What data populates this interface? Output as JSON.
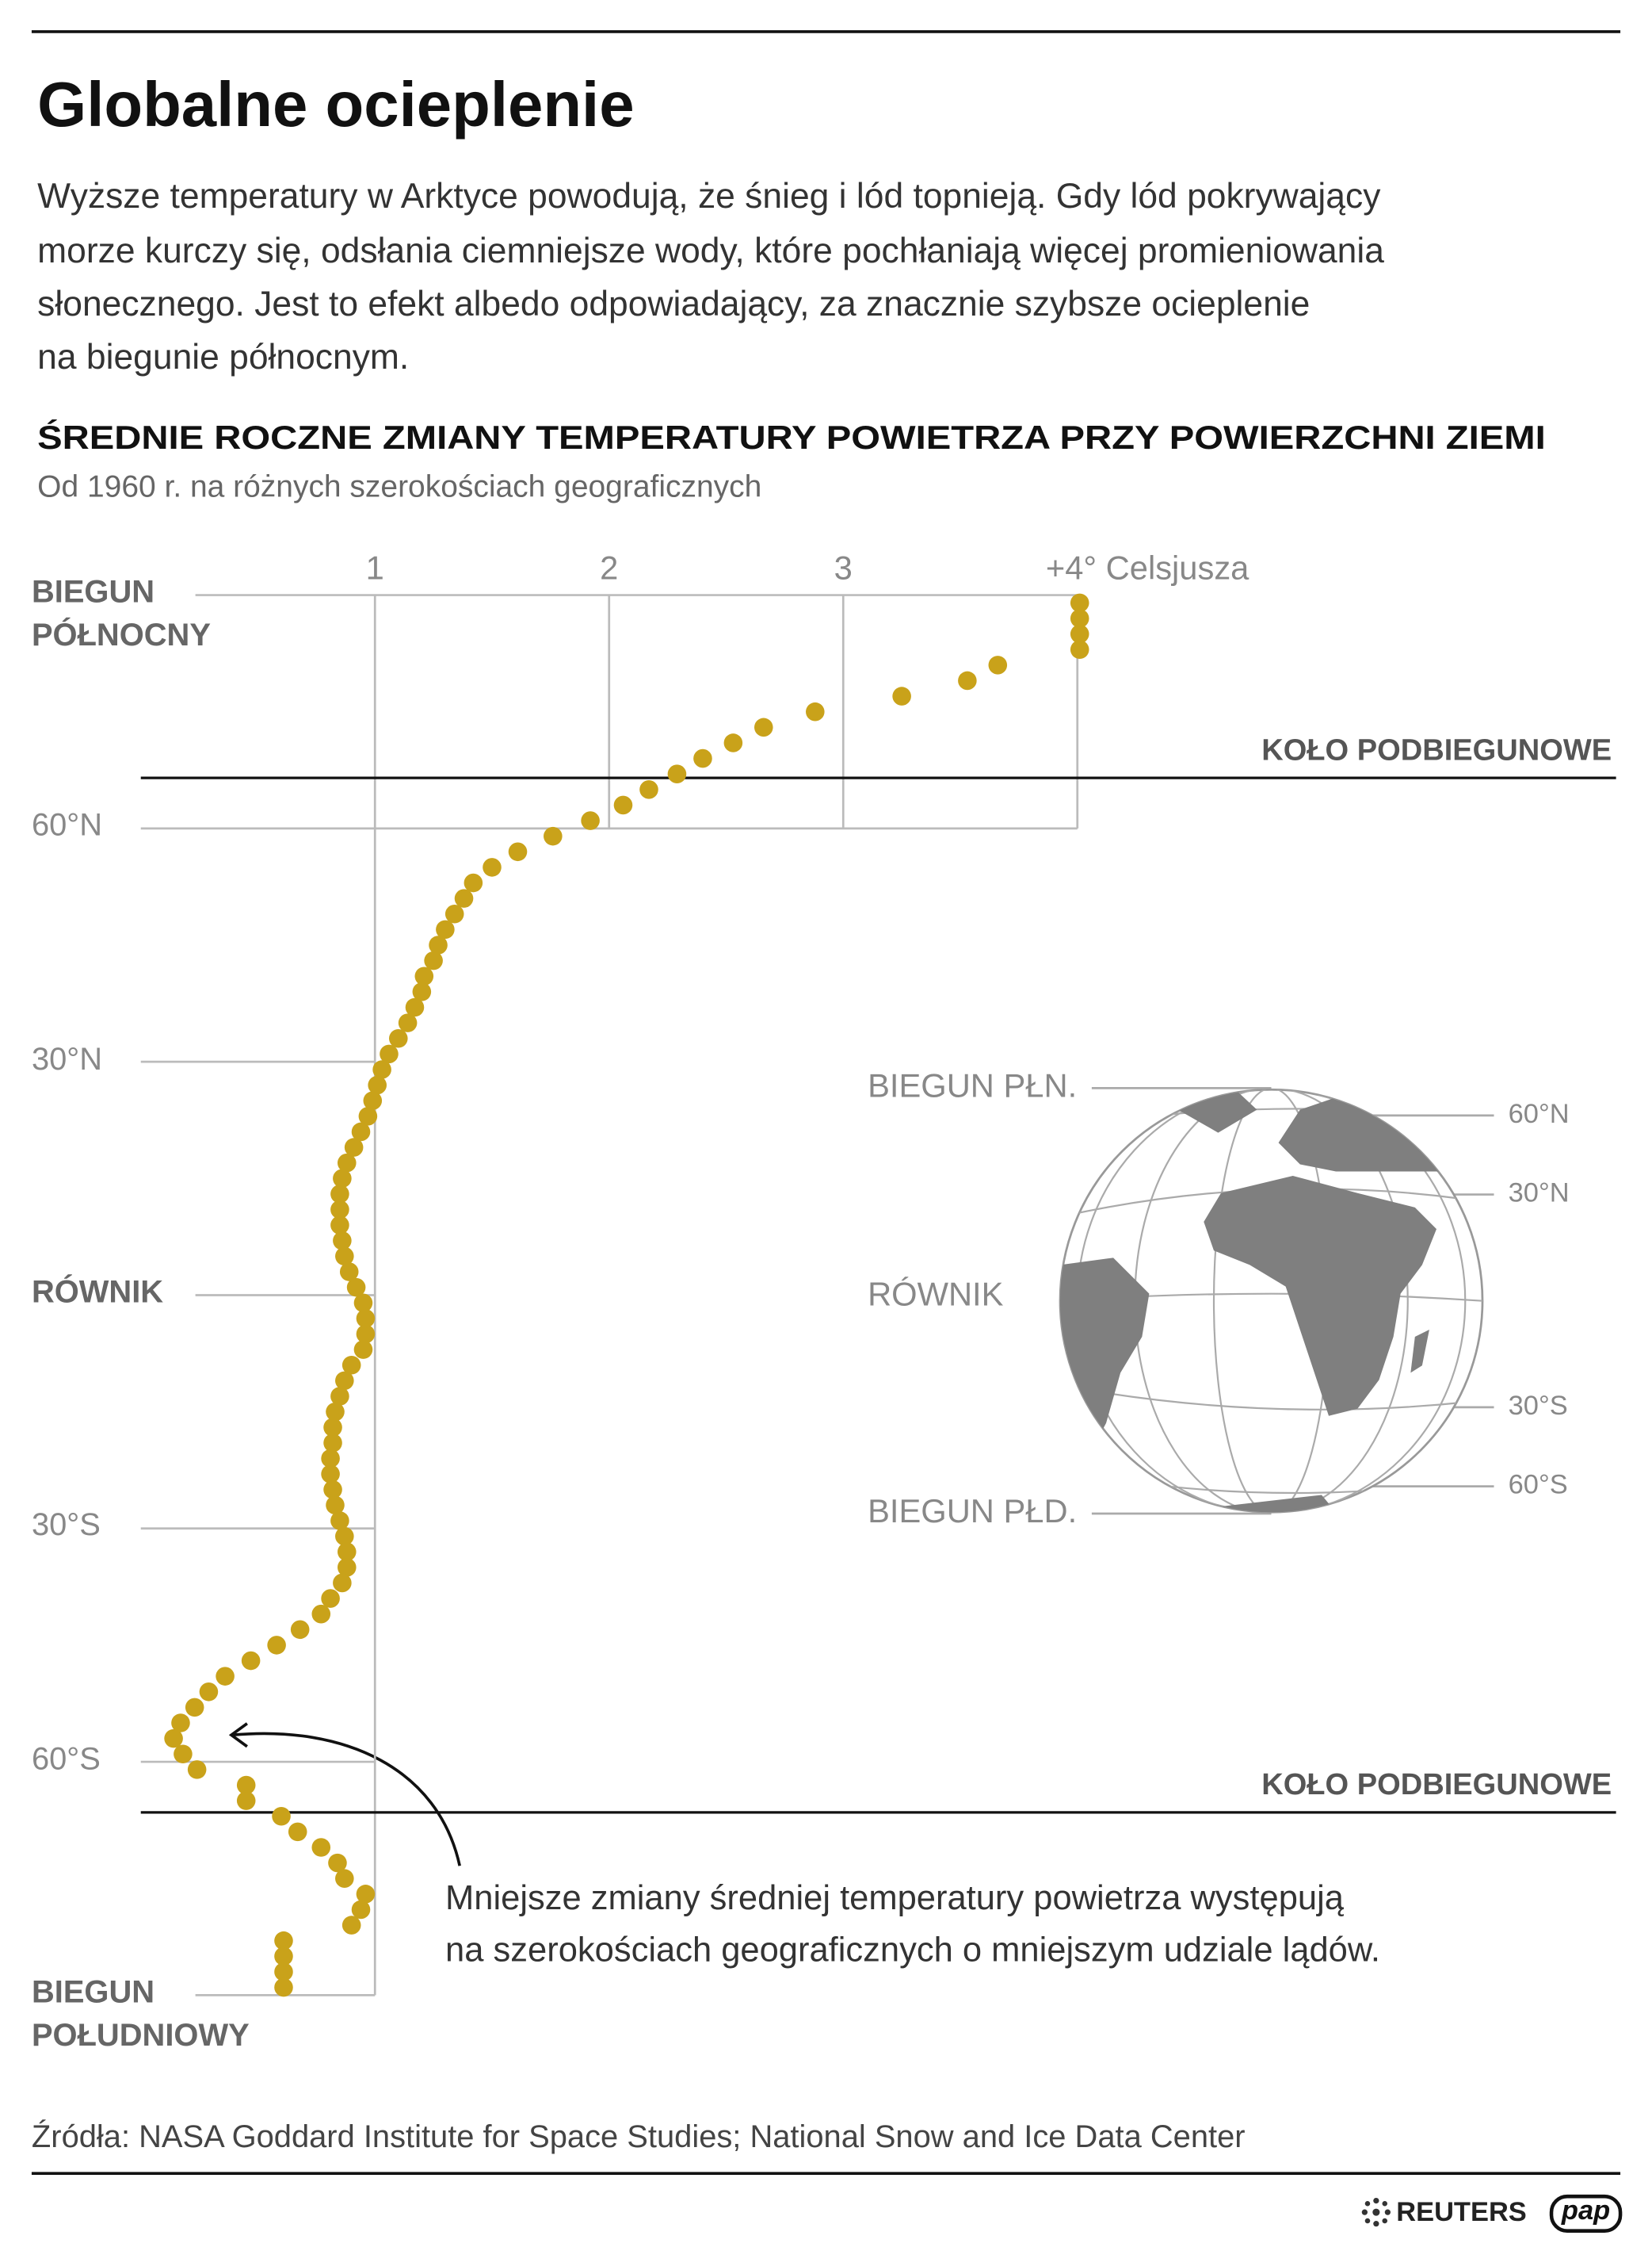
{
  "header": {
    "title": "Globalne ocieplenie",
    "description": [
      "Wyższe temperatury w Arktyce powodują, że śnieg i lód topnieją. Gdy lód pokrywający",
      "morze kurczy się, odsłania ciemniejsze wody, które pochłaniają więcej promieniowania",
      "słonecznego. Jest to efekt albedo odpowiadający, za znacznie szybsze ocieplenie",
      "na biegunie północnym."
    ]
  },
  "chart_data": {
    "type": "scatter",
    "title": "ŚREDNIE ROCZNE ZMIANY TEMPERATURY POWIETRZA PRZY POWIERZCHNI ZIEMI",
    "subtitle": "Od 1960 r. na różnych szerokościach geograficznych",
    "xlim": [
      0,
      4
    ],
    "xticks": [
      1,
      2,
      3,
      {
        "value": 4,
        "label": "+4° Celsjusza"
      }
    ],
    "ylim": [
      -90,
      90
    ],
    "yticks": [
      {
        "value": 90,
        "label": "BIEGUN PÓŁNOCNY"
      },
      {
        "value": 60,
        "label": "60°N"
      },
      {
        "value": 30,
        "label": "30°N"
      },
      {
        "value": 0,
        "label": "RÓWNIK"
      },
      {
        "value": -30,
        "label": "30°S"
      },
      {
        "value": -60,
        "label": "60°S"
      },
      {
        "value": -90,
        "label": "BIEGUN POŁUDNIOWY"
      }
    ],
    "series": [
      {
        "color": "#c9a21a",
        "x": [
          4.01,
          4.01,
          4.01,
          4.01,
          3.66,
          3.53,
          3.25,
          2.88,
          2.66,
          2.53,
          2.4,
          2.29,
          2.17,
          2.06,
          1.92,
          1.76,
          1.61,
          1.5,
          1.42,
          1.38,
          1.34,
          1.3,
          1.27,
          1.25,
          1.21,
          1.2,
          1.17,
          1.14,
          1.1,
          1.06,
          1.03,
          1.01,
          0.99,
          0.97,
          0.94,
          0.91,
          0.88,
          0.86,
          0.85,
          0.85,
          0.85,
          0.86,
          0.87,
          0.89,
          0.92,
          0.95,
          0.96,
          0.96,
          0.95,
          0.9,
          0.87,
          0.85,
          0.83,
          0.82,
          0.82,
          0.81,
          0.81,
          0.82,
          0.83,
          0.85,
          0.87,
          0.88,
          0.88,
          0.86,
          0.81,
          0.77,
          0.68,
          0.58,
          0.47,
          0.36,
          0.29,
          0.23,
          0.17,
          0.14,
          0.18,
          0.24,
          0.45,
          0.45,
          0.6,
          0.67,
          0.77,
          0.84,
          0.87,
          0.96,
          0.94,
          0.9,
          0.61,
          0.61,
          0.61,
          0.61
        ],
        "y": [
          89,
          87,
          85,
          83,
          81,
          79,
          77,
          75,
          73,
          71,
          69,
          67,
          65,
          63,
          61,
          59,
          57,
          55,
          53,
          51,
          49,
          47,
          45,
          43,
          41,
          39,
          37,
          35,
          33,
          31,
          29,
          27,
          25,
          23,
          21,
          19,
          17,
          15,
          13,
          11,
          9,
          7,
          5,
          3,
          1,
          -1,
          -3,
          -5,
          -7,
          -9,
          -11,
          -13,
          -15,
          -17,
          -19,
          -21,
          -23,
          -25,
          -27,
          -29,
          -31,
          -33,
          -35,
          -37,
          -39,
          -41,
          -43,
          -45,
          -47,
          -49,
          -51,
          -53,
          -55,
          -57,
          -59,
          -61,
          -63,
          -65,
          -67,
          -69,
          -71,
          -73,
          -75,
          -77,
          -79,
          -81,
          -83,
          -85,
          -87,
          -89
        ]
      }
    ],
    "reference_lines": [
      {
        "label": "KOŁO PODBIEGUNOWE",
        "y": 66.5
      },
      {
        "label": "KOŁO PODBIEGUNOWE",
        "y": -66.5
      }
    ],
    "annotation": [
      "Mniejsze zmiany średniej temperatury powietrza występują",
      "na szerokościach geograficznych o mniejszym udziale lądów."
    ]
  },
  "globe": {
    "labels": [
      "BIEGUN PŁN.",
      "60°N",
      "30°N",
      "RÓWNIK",
      "30°S",
      "60°S",
      "BIEGUN PŁD."
    ]
  },
  "footer": {
    "source": "Źródła: NASA Goddard Institute for Space Studies; National Snow and Ice Data Center",
    "logos": [
      "REUTERS",
      "pap"
    ]
  }
}
